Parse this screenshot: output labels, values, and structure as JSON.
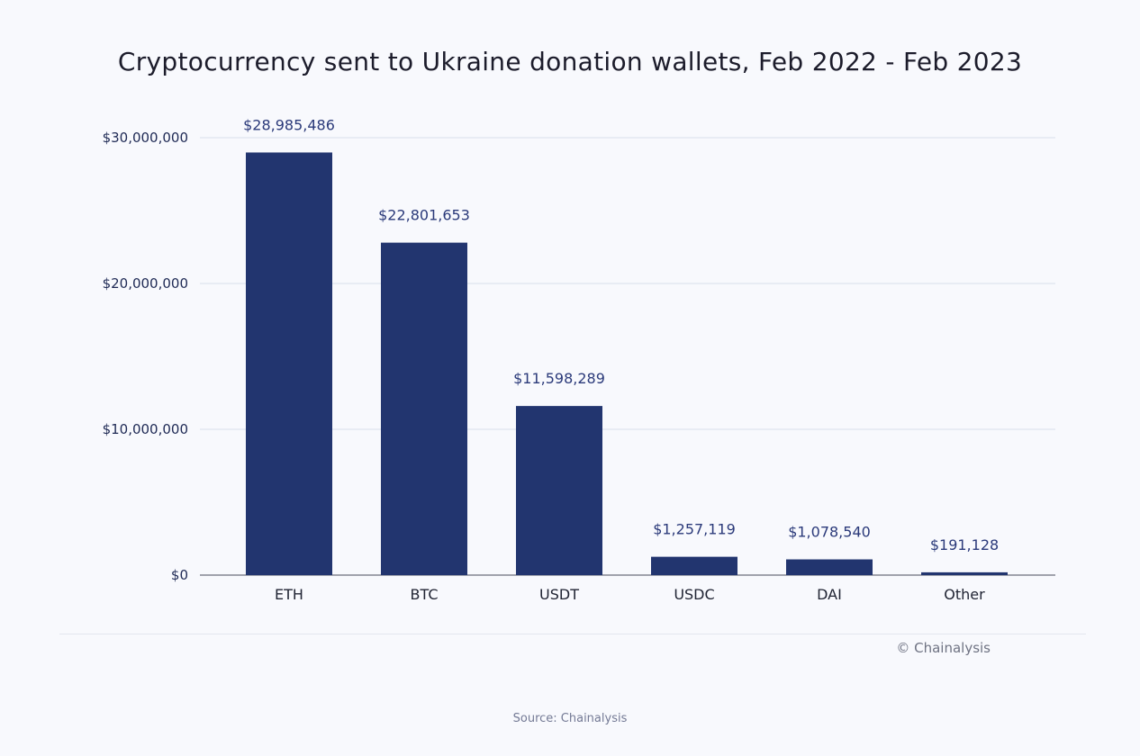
{
  "chart_data": {
    "type": "bar",
    "title": "Cryptocurrency sent to Ukraine donation wallets, Feb 2022 - Feb 2023",
    "categories": [
      "ETH",
      "BTC",
      "USDT",
      "USDC",
      "DAI",
      "Other"
    ],
    "values": [
      28985486,
      22801653,
      11598289,
      1257119,
      1078540,
      191128
    ],
    "data_labels": [
      "$28,985,486",
      "$22,801,653",
      "$11,598,289",
      "$1,257,119",
      "$1,078,540",
      "$191,128"
    ],
    "y_ticks": [
      0,
      10000000,
      20000000,
      30000000
    ],
    "y_tick_labels": [
      "$0",
      "$10,000,000",
      "$20,000,000",
      "$30,000,000"
    ],
    "ylim": [
      0,
      30000000
    ],
    "xlabel": "",
    "ylabel": "",
    "grid": true,
    "legend": "none",
    "bar_color": "#22356f"
  },
  "copyright": "© Chainalysis",
  "source": "Source: Chainalysis"
}
